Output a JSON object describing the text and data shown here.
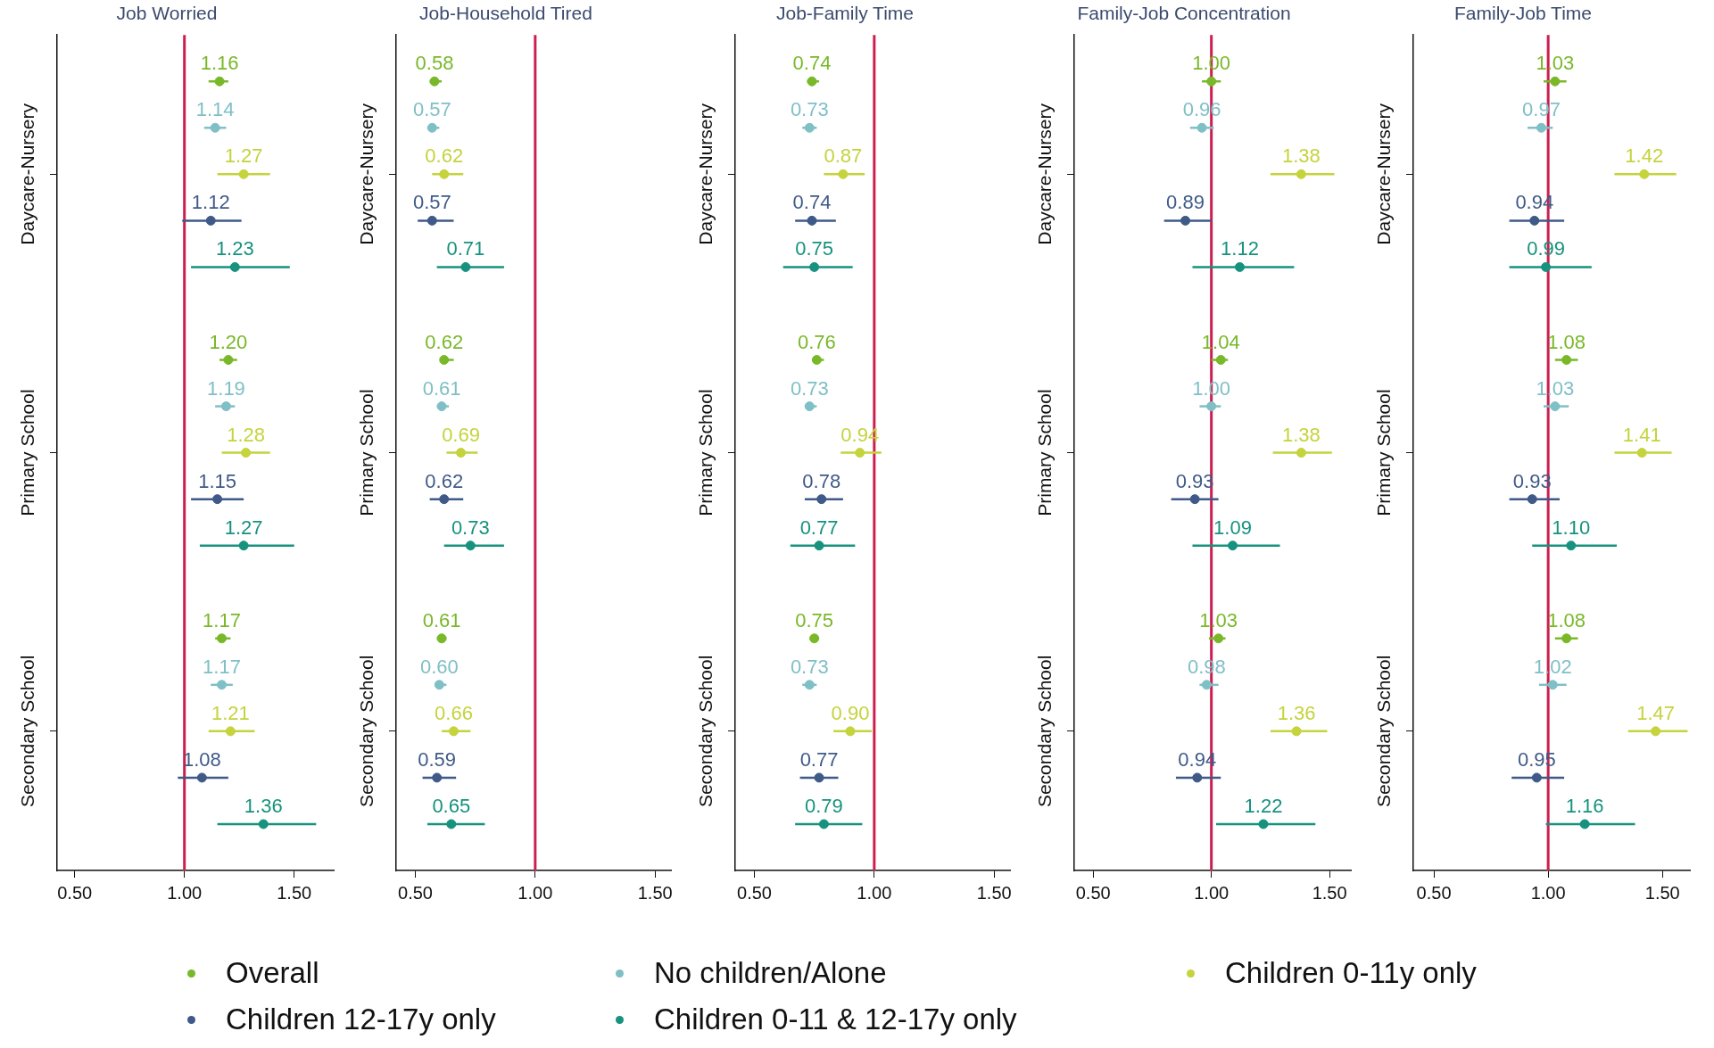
{
  "chart_data": [
    {
      "type": "scatter",
      "orientation": "horizontal",
      "title": "Job Worried",
      "categories": [
        "Daycare-Nursery",
        "Primary School",
        "Secondary School"
      ],
      "xlim": [
        0.42,
        1.68
      ],
      "xticks": [
        {
          "value": 0.5,
          "label": "0.50"
        },
        {
          "value": 1,
          "label": "1.00"
        },
        {
          "value": 1.5,
          "label": "1.50"
        }
      ],
      "ref_lines": [
        {
          "axis": "x",
          "value": 1,
          "color": "#cc1f4f"
        }
      ],
      "marker": "circle",
      "grid": false,
      "legend": "bottom",
      "series": [
        {
          "name": "Overall",
          "color": "#79b829",
          "values": [
            1.16,
            1.2,
            1.17
          ],
          "value_labels": [
            "1.16",
            "1.20",
            "1.17"
          ],
          "errors": [
            [
              1.11,
              1.2
            ],
            [
              1.16,
              1.24
            ],
            [
              1.14,
              1.21
            ]
          ]
        },
        {
          "name": "No children/Alone",
          "color": "#7fbfc6",
          "values": [
            1.14,
            1.19,
            1.17
          ],
          "value_labels": [
            "1.14",
            "1.19",
            "1.17"
          ],
          "errors": [
            [
              1.09,
              1.19
            ],
            [
              1.14,
              1.23
            ],
            [
              1.12,
              1.22
            ]
          ]
        },
        {
          "name": "Children 0-11y only",
          "color": "#c5d33c",
          "values": [
            1.27,
            1.28,
            1.21
          ],
          "value_labels": [
            "1.27",
            "1.28",
            "1.21"
          ],
          "errors": [
            [
              1.15,
              1.39
            ],
            [
              1.17,
              1.39
            ],
            [
              1.11,
              1.32
            ]
          ]
        },
        {
          "name": "Children 12-17y only",
          "color": "#3f5a88",
          "values": [
            1.12,
            1.15,
            1.08
          ],
          "value_labels": [
            "1.12",
            "1.15",
            "1.08"
          ],
          "errors": [
            [
              0.99,
              1.26
            ],
            [
              1.03,
              1.27
            ],
            [
              0.97,
              1.2
            ]
          ]
        },
        {
          "name": "Children 0-11 & 12-17y only",
          "color": "#16927e",
          "values": [
            1.23,
            1.27,
            1.36
          ],
          "value_labels": [
            "1.23",
            "1.27",
            "1.36"
          ],
          "errors": [
            [
              1.03,
              1.48
            ],
            [
              1.07,
              1.5
            ],
            [
              1.15,
              1.6
            ]
          ]
        }
      ]
    },
    {
      "type": "scatter",
      "orientation": "horizontal",
      "title": "Job-Household Tired",
      "categories": [
        "Daycare-Nursery",
        "Primary School",
        "Secondary School"
      ],
      "xlim": [
        0.42,
        1.57
      ],
      "xticks": [
        {
          "value": 0.5,
          "label": "0.50"
        },
        {
          "value": 1,
          "label": "1.00"
        },
        {
          "value": 1.5,
          "label": "1.50"
        }
      ],
      "ref_lines": [
        {
          "axis": "x",
          "value": 1,
          "color": "#cc1f4f"
        }
      ],
      "marker": "circle",
      "grid": false,
      "series": [
        {
          "color": "#79b829",
          "values": [
            0.58,
            0.62,
            0.61
          ],
          "value_labels": [
            "0.58",
            "0.62",
            "0.61"
          ],
          "errors": [
            [
              0.56,
              0.61
            ],
            [
              0.61,
              0.66
            ],
            [
              0.59,
              0.63
            ]
          ]
        },
        {
          "color": "#7fbfc6",
          "values": [
            0.57,
            0.61,
            0.6
          ],
          "value_labels": [
            "0.57",
            "0.61",
            "0.60"
          ],
          "errors": [
            [
              0.55,
              0.6
            ],
            [
              0.59,
              0.64
            ],
            [
              0.58,
              0.63
            ]
          ]
        },
        {
          "color": "#c5d33c",
          "values": [
            0.62,
            0.69,
            0.66
          ],
          "value_labels": [
            "0.62",
            "0.69",
            "0.66"
          ],
          "errors": [
            [
              0.57,
              0.7
            ],
            [
              0.63,
              0.76
            ],
            [
              0.61,
              0.73
            ]
          ]
        },
        {
          "color": "#3f5a88",
          "values": [
            0.57,
            0.62,
            0.59
          ],
          "value_labels": [
            "0.57",
            "0.62",
            "0.59"
          ],
          "errors": [
            [
              0.51,
              0.66
            ],
            [
              0.56,
              0.7
            ],
            [
              0.53,
              0.67
            ]
          ]
        },
        {
          "color": "#16927e",
          "values": [
            0.71,
            0.73,
            0.65
          ],
          "value_labels": [
            "0.71",
            "0.73",
            "0.65"
          ],
          "errors": [
            [
              0.59,
              0.87
            ],
            [
              0.62,
              0.87
            ],
            [
              0.55,
              0.79
            ]
          ]
        }
      ]
    },
    {
      "type": "scatter",
      "orientation": "horizontal",
      "title": "Job-Family Time",
      "categories": [
        "Daycare-Nursery",
        "Primary School",
        "Secondary School"
      ],
      "xlim": [
        0.42,
        1.57
      ],
      "xticks": [
        {
          "value": 0.5,
          "label": "0.50"
        },
        {
          "value": 1,
          "label": "1.00"
        },
        {
          "value": 1.5,
          "label": "1.50"
        }
      ],
      "ref_lines": [
        {
          "axis": "x",
          "value": 1,
          "color": "#cc1f4f"
        }
      ],
      "marker": "circle",
      "grid": false,
      "series": [
        {
          "color": "#79b829",
          "values": [
            0.74,
            0.76,
            0.75
          ],
          "value_labels": [
            "0.74",
            "0.76",
            "0.75"
          ],
          "errors": [
            [
              0.72,
              0.77
            ],
            [
              0.74,
              0.79
            ],
            [
              0.73,
              0.77
            ]
          ]
        },
        {
          "color": "#7fbfc6",
          "values": [
            0.73,
            0.73,
            0.73
          ],
          "value_labels": [
            "0.73",
            "0.73",
            "0.73"
          ],
          "errors": [
            [
              0.7,
              0.76
            ],
            [
              0.71,
              0.76
            ],
            [
              0.7,
              0.76
            ]
          ]
        },
        {
          "color": "#c5d33c",
          "values": [
            0.87,
            0.94,
            0.9
          ],
          "value_labels": [
            "0.87",
            "0.94",
            "0.90"
          ],
          "errors": [
            [
              0.79,
              0.96
            ],
            [
              0.86,
              1.03
            ],
            [
              0.83,
              0.99
            ]
          ]
        },
        {
          "color": "#3f5a88",
          "values": [
            0.74,
            0.78,
            0.77
          ],
          "value_labels": [
            "0.74",
            "0.78",
            "0.77"
          ],
          "errors": [
            [
              0.67,
              0.84
            ],
            [
              0.71,
              0.87
            ],
            [
              0.69,
              0.85
            ]
          ]
        },
        {
          "color": "#16927e",
          "values": [
            0.75,
            0.77,
            0.79
          ],
          "value_labels": [
            "0.75",
            "0.77",
            "0.79"
          ],
          "errors": [
            [
              0.62,
              0.91
            ],
            [
              0.65,
              0.92
            ],
            [
              0.67,
              0.95
            ]
          ]
        }
      ]
    },
    {
      "type": "scatter",
      "orientation": "horizontal",
      "title": "Family-Job Concentration",
      "categories": [
        "Daycare-Nursery",
        "Primary School",
        "Secondary School"
      ],
      "xlim": [
        0.42,
        1.59
      ],
      "xticks": [
        {
          "value": 0.5,
          "label": "0.50"
        },
        {
          "value": 1,
          "label": "1.00"
        },
        {
          "value": 1.5,
          "label": "1.50"
        }
      ],
      "ref_lines": [
        {
          "axis": "x",
          "value": 1,
          "color": "#cc1f4f"
        }
      ],
      "marker": "circle",
      "grid": false,
      "series": [
        {
          "color": "#79b829",
          "values": [
            1.0,
            1.04,
            1.03
          ],
          "value_labels": [
            "1.00",
            "1.04",
            "1.03"
          ],
          "errors": [
            [
              0.96,
              1.04
            ],
            [
              1.0,
              1.07
            ],
            [
              0.99,
              1.06
            ]
          ]
        },
        {
          "color": "#7fbfc6",
          "values": [
            0.96,
            1.0,
            0.98
          ],
          "value_labels": [
            "0.96",
            "1.00",
            "0.98"
          ],
          "errors": [
            [
              0.91,
              1.01
            ],
            [
              0.95,
              1.04
            ],
            [
              0.95,
              1.03
            ]
          ]
        },
        {
          "color": "#c5d33c",
          "values": [
            1.38,
            1.38,
            1.36
          ],
          "value_labels": [
            "1.38",
            "1.38",
            "1.36"
          ],
          "errors": [
            [
              1.25,
              1.52
            ],
            [
              1.26,
              1.51
            ],
            [
              1.25,
              1.49
            ]
          ]
        },
        {
          "color": "#3f5a88",
          "values": [
            0.89,
            0.93,
            0.94
          ],
          "value_labels": [
            "0.89",
            "0.93",
            "0.94"
          ],
          "errors": [
            [
              0.8,
              1.0
            ],
            [
              0.83,
              1.03
            ],
            [
              0.85,
              1.04
            ]
          ]
        },
        {
          "color": "#16927e",
          "values": [
            1.12,
            1.09,
            1.22
          ],
          "value_labels": [
            "1.12",
            "1.09",
            "1.22"
          ],
          "errors": [
            [
              0.92,
              1.35
            ],
            [
              0.92,
              1.29
            ],
            [
              1.02,
              1.44
            ]
          ]
        }
      ]
    },
    {
      "type": "scatter",
      "orientation": "horizontal",
      "title": "Family-Job Time",
      "categories": [
        "Daycare-Nursery",
        "Primary School",
        "Secondary School"
      ],
      "xlim": [
        0.41,
        1.62
      ],
      "xticks": [
        {
          "value": 0.5,
          "label": "0.50"
        },
        {
          "value": 1,
          "label": "1.00"
        },
        {
          "value": 1.5,
          "label": "1.50"
        }
      ],
      "ref_lines": [
        {
          "axis": "x",
          "value": 1,
          "color": "#cc1f4f"
        }
      ],
      "marker": "circle",
      "grid": false,
      "series": [
        {
          "color": "#79b829",
          "values": [
            1.03,
            1.08,
            1.08
          ],
          "value_labels": [
            "1.03",
            "1.08",
            "1.08"
          ],
          "errors": [
            [
              0.98,
              1.08
            ],
            [
              1.03,
              1.13
            ],
            [
              1.03,
              1.13
            ]
          ]
        },
        {
          "color": "#7fbfc6",
          "values": [
            0.97,
            1.03,
            1.02
          ],
          "value_labels": [
            "0.97",
            "1.03",
            "1.02"
          ],
          "errors": [
            [
              0.91,
              1.02
            ],
            [
              0.98,
              1.09
            ],
            [
              0.96,
              1.08
            ]
          ]
        },
        {
          "color": "#c5d33c",
          "values": [
            1.42,
            1.41,
            1.47
          ],
          "value_labels": [
            "1.42",
            "1.41",
            "1.47"
          ],
          "errors": [
            [
              1.29,
              1.56
            ],
            [
              1.29,
              1.54
            ],
            [
              1.35,
              1.61
            ]
          ]
        },
        {
          "color": "#3f5a88",
          "values": [
            0.94,
            0.93,
            0.95
          ],
          "value_labels": [
            "0.94",
            "0.93",
            "0.95"
          ],
          "errors": [
            [
              0.83,
              1.07
            ],
            [
              0.83,
              1.05
            ],
            [
              0.84,
              1.07
            ]
          ]
        },
        {
          "color": "#16927e",
          "values": [
            0.99,
            1.1,
            1.16
          ],
          "value_labels": [
            "0.99",
            "1.10",
            "1.16"
          ],
          "errors": [
            [
              0.83,
              1.19
            ],
            [
              0.93,
              1.3
            ],
            [
              0.99,
              1.38
            ]
          ]
        }
      ]
    }
  ]
}
